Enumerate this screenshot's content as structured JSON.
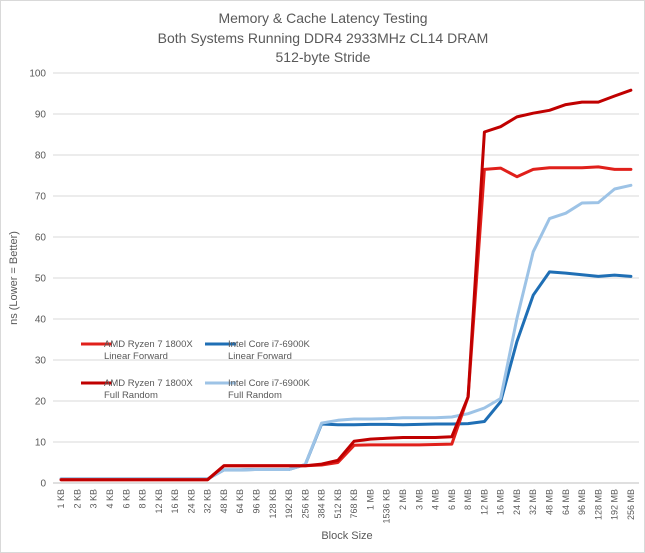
{
  "chart_data": {
    "type": "line",
    "title": "Memory & Cache Latency Testing",
    "subtitle_lines": [
      "Both Systems Running DDR4 2933MHz CL14 DRAM",
      "512-byte Stride"
    ],
    "xlabel": "Block Size",
    "ylabel": "ns (Lower = Better)",
    "ylim": [
      0,
      100
    ],
    "yticks": [
      0,
      10,
      20,
      30,
      40,
      50,
      60,
      70,
      80,
      90,
      100
    ],
    "grid": true,
    "legend_position": "left-center",
    "categories": [
      "1 KB",
      "2 KB",
      "3 KB",
      "4 KB",
      "6 KB",
      "8 KB",
      "12 KB",
      "16 KB",
      "24 KB",
      "32 KB",
      "48 KB",
      "64 KB",
      "96 KB",
      "128 KB",
      "192 KB",
      "256 KB",
      "384 KB",
      "512 KB",
      "768 KB",
      "1 MB",
      "1536 KB",
      "2 MB",
      "3 MB",
      "4 MB",
      "6 MB",
      "8 MB",
      "12 MB",
      "16 MB",
      "24 MB",
      "32 MB",
      "48 MB",
      "64 MB",
      "96 MB",
      "128 MB",
      "192 MB",
      "256 MB"
    ],
    "series": [
      {
        "name": "AMD Ryzen 7 1800X Linear Forward",
        "label_lines": [
          "AMD Ryzen 7 1800X",
          "Linear Forward"
        ],
        "color": "#e0201b",
        "values": [
          0.8,
          0.8,
          0.8,
          0.8,
          0.8,
          0.8,
          0.8,
          0.8,
          0.8,
          0.8,
          4.2,
          4.2,
          4.2,
          4.2,
          4.2,
          4.2,
          4.4,
          5.0,
          9.2,
          9.3,
          9.3,
          9.3,
          9.3,
          9.4,
          9.5,
          21.0,
          76.5,
          76.8,
          74.7,
          76.5,
          76.9,
          76.9,
          76.9,
          77.1,
          76.5,
          76.5
        ]
      },
      {
        "name": "Intel Core i7-6900K Linear Forward",
        "label_lines": [
          "Intel Core i7-6900K",
          "Linear Forward"
        ],
        "color": "#1f6fb5",
        "values": [
          1.0,
          1.0,
          1.0,
          1.0,
          1.0,
          1.0,
          1.0,
          1.0,
          1.0,
          1.0,
          3.2,
          3.2,
          3.3,
          3.3,
          3.3,
          4.5,
          14.4,
          14.2,
          14.2,
          14.3,
          14.3,
          14.2,
          14.3,
          14.4,
          14.4,
          14.5,
          15.0,
          19.8,
          34.5,
          45.8,
          51.5,
          51.2,
          50.8,
          50.4,
          50.7,
          50.4
        ]
      },
      {
        "name": "AMD Ryzen 7 1800X Full Random",
        "label_lines": [
          "AMD Ryzen 7 1800X",
          "Full Random"
        ],
        "color": "#c00000",
        "values": [
          0.8,
          0.8,
          0.8,
          0.8,
          0.8,
          0.8,
          0.8,
          0.8,
          0.8,
          0.8,
          4.2,
          4.2,
          4.2,
          4.2,
          4.2,
          4.2,
          4.6,
          5.5,
          10.2,
          10.7,
          10.9,
          11.1,
          11.1,
          11.1,
          11.3,
          21.0,
          85.6,
          86.9,
          89.3,
          90.2,
          90.9,
          92.3,
          92.9,
          92.9,
          94.4,
          95.8
        ]
      },
      {
        "name": "Intel Core i7-6900K Full Random",
        "label_lines": [
          "Intel Core i7-6900K",
          "Full Random"
        ],
        "color": "#9dc3e6",
        "values": [
          1.0,
          1.0,
          1.0,
          1.0,
          1.0,
          1.0,
          1.0,
          1.0,
          1.0,
          1.0,
          3.2,
          3.2,
          3.3,
          3.3,
          3.3,
          4.5,
          14.6,
          15.3,
          15.6,
          15.6,
          15.7,
          15.9,
          15.9,
          15.9,
          16.1,
          16.9,
          18.3,
          20.6,
          40.1,
          56.4,
          64.5,
          65.8,
          68.3,
          68.4,
          71.7,
          72.6
        ]
      }
    ]
  }
}
